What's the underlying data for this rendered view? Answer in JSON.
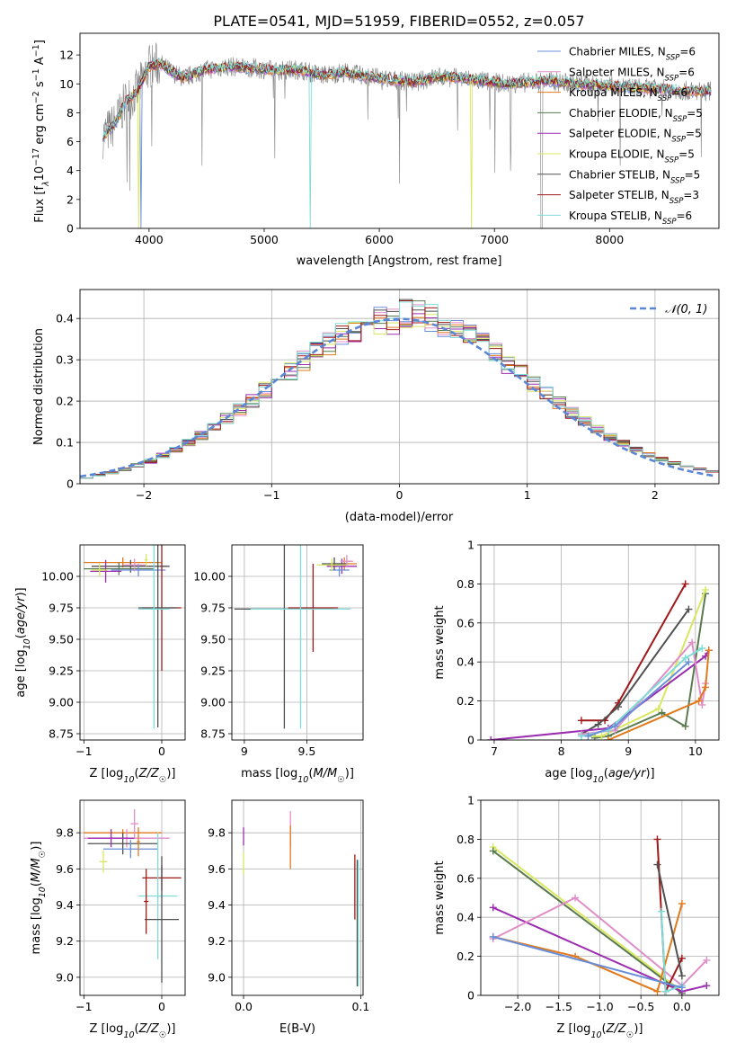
{
  "figure": {
    "title": "PLATE=0541, MJD=51959, FIBERID=0552, z=0.057"
  },
  "colors": {
    "series": [
      "#6a8ed8",
      "#e08ec8",
      "#e07a1c",
      "#5a7a50",
      "#9c2cb0",
      "#d8e860",
      "#505050",
      "#a01818",
      "#80dcd8"
    ],
    "grid": "#b0b0b0",
    "gauss": "#5b86d6"
  },
  "chart_data": [
    {
      "id": "spectrum",
      "type": "line",
      "xlabel": "wavelength [Angstrom, rest frame]",
      "ylabel": "Flux [f_λ 10^-17 erg cm^-2 s^-1 A^-1]",
      "xlim": [
        3400,
        8950
      ],
      "ylim": [
        0,
        13.5
      ],
      "xticks": [
        4000,
        5000,
        6000,
        7000,
        8000
      ],
      "yticks": [
        0,
        2,
        4,
        6,
        8,
        10,
        12
      ],
      "grid": false,
      "legend_position": "top-right",
      "legend": [
        {
          "main": "Chabrier MILES, N",
          "sub": "SSP",
          "tail": "=6"
        },
        {
          "main": "Salpeter MILES, N",
          "sub": "SSP",
          "tail": "=6"
        },
        {
          "main": "Kroupa MILES, N",
          "sub": "SSP",
          "tail": "=6"
        },
        {
          "main": "Chabrier ELODIE, N",
          "sub": "SSP",
          "tail": "=5"
        },
        {
          "main": "Salpeter ELODIE, N",
          "sub": "SSP",
          "tail": "=5"
        },
        {
          "main": "Kroupa ELODIE, N",
          "sub": "SSP",
          "tail": "=5"
        },
        {
          "main": "Chabrier STELIB, N",
          "sub": "SSP",
          "tail": "=5"
        },
        {
          "main": "Salpeter STELIB, N",
          "sub": "SSP",
          "tail": "=3"
        },
        {
          "main": "Kroupa STELIB, N",
          "sub": "SSP",
          "tail": "=6"
        }
      ],
      "data_wavelength": [
        3600,
        3700,
        3800,
        3900,
        4000,
        4100,
        4200,
        4300,
        4400,
        4500,
        4700,
        4900,
        5100,
        5300,
        5500,
        5700,
        5900,
        6100,
        6300,
        6500,
        6700,
        6900,
        7100,
        7300,
        7500,
        7700,
        7900,
        8100,
        8300,
        8500,
        8700
      ],
      "data_flux": [
        6.4,
        7.2,
        8.8,
        9.5,
        11.2,
        11.4,
        10.8,
        10.4,
        10.7,
        11.0,
        11.2,
        11.1,
        10.9,
        11.0,
        10.6,
        10.8,
        10.5,
        10.3,
        10.1,
        10.5,
        10.4,
        10.2,
        10.0,
        10.1,
        10.2,
        10.0,
        9.9,
        9.8,
        9.7,
        9.6,
        9.5
      ]
    },
    {
      "id": "residuals",
      "type": "histogram",
      "xlabel": "(data-model)/error",
      "ylabel": "Normed distribution",
      "xlim": [
        -2.5,
        2.5
      ],
      "ylim": [
        0,
        0.47
      ],
      "xticks": [
        -2,
        -1,
        0,
        1,
        2
      ],
      "yticks": [
        0.0,
        0.1,
        0.2,
        0.3,
        0.4
      ],
      "grid": true,
      "legend_position": "top-right",
      "gauss_label": "𝒩(0, 1)",
      "gauss_mean": 0,
      "gauss_sigma": 1
    },
    {
      "id": "age_vs_Z",
      "type": "errorbar",
      "xlabel": "Z [log10(Z/Z☉)]",
      "ylabel": "age  [log10(age/yr)]",
      "xlim": [
        -1.05,
        0.3
      ],
      "ylim": [
        8.7,
        10.25
      ],
      "xticks": [
        -1,
        0
      ],
      "yticks": [
        8.75,
        9.0,
        9.25,
        9.5,
        9.75,
        10.0
      ],
      "ytick_labels": [
        "8.75",
        "9.00",
        "9.25",
        "9.50",
        "9.75",
        "10.00"
      ],
      "grid": true,
      "points": [
        {
          "x": -0.5,
          "xerr": 0.5,
          "y": 10.11,
          "yerr": 0.04,
          "c": 2
        },
        {
          "x": -0.4,
          "xerr": 0.5,
          "y": 10.08,
          "yerr": 0.05,
          "c": 6
        },
        {
          "x": -0.55,
          "xerr": 0.45,
          "y": 10.06,
          "yerr": 0.05,
          "c": 3
        },
        {
          "x": -0.3,
          "xerr": 0.35,
          "y": 10.05,
          "yerr": 0.05,
          "c": 0
        },
        {
          "x": -0.72,
          "xerr": 0.2,
          "y": 10.04,
          "yerr": 0.09,
          "c": 4
        },
        {
          "x": -0.35,
          "xerr": 0.15,
          "y": 10.09,
          "yerr": 0.05,
          "c": 1
        },
        {
          "x": -0.8,
          "xerr": 0.1,
          "y": 10.05,
          "yerr": 0.05,
          "c": 5
        },
        {
          "x": -0.2,
          "xerr": 0.02,
          "y": 10.13,
          "yerr": 0.05,
          "c": 5
        },
        {
          "x": 0.0,
          "xerr": 0.25,
          "y": 9.75,
          "yerr": 0.5,
          "c": 7
        },
        {
          "x": -0.05,
          "xerr": 0.25,
          "y": 9.75,
          "yerr": 0.95,
          "c": 6
        },
        {
          "x": -0.1,
          "xerr": 0.2,
          "y": 9.74,
          "yerr": 0.95,
          "c": 8
        }
      ]
    },
    {
      "id": "age_vs_mass",
      "type": "errorbar",
      "xlabel": "mass [log10(M/M☉)]",
      "ylabel": "",
      "xlim": [
        8.9,
        9.95
      ],
      "ylim": [
        8.7,
        10.25
      ],
      "xticks": [
        9.0,
        9.5
      ],
      "yticks": [
        8.75,
        9.0,
        9.25,
        9.5,
        9.75,
        10.0
      ],
      "ytick_labels": [
        "8.75",
        "9.00",
        "9.25",
        "9.50",
        "9.75",
        "10.00"
      ],
      "grid": true,
      "points": [
        {
          "x": 9.8,
          "xerr": 0.1,
          "y": 10.1,
          "yerr": 0.05,
          "c": 2
        },
        {
          "x": 9.78,
          "xerr": 0.12,
          "y": 10.08,
          "yerr": 0.06,
          "c": 4
        },
        {
          "x": 9.76,
          "xerr": 0.08,
          "y": 10.05,
          "yerr": 0.05,
          "c": 0
        },
        {
          "x": 9.72,
          "xerr": 0.1,
          "y": 10.1,
          "yerr": 0.05,
          "c": 6
        },
        {
          "x": 9.82,
          "xerr": 0.05,
          "y": 10.12,
          "yerr": 0.05,
          "c": 1
        },
        {
          "x": 9.7,
          "xerr": 0.12,
          "y": 10.09,
          "yerr": 0.05,
          "c": 5
        },
        {
          "x": 9.55,
          "xerr": 0.2,
          "y": 9.75,
          "yerr": 0.35,
          "c": 7
        },
        {
          "x": 9.32,
          "xerr": 0.4,
          "y": 9.74,
          "yerr": 0.95,
          "c": 6
        },
        {
          "x": 9.45,
          "xerr": 0.4,
          "y": 9.74,
          "yerr": 0.95,
          "c": 8
        }
      ]
    },
    {
      "id": "weight_vs_age",
      "type": "line",
      "xlabel": "age  [log10(age/yr)]",
      "ylabel": "mass weight",
      "xlim": [
        6.8,
        10.35
      ],
      "ylim": [
        0,
        1
      ],
      "xticks": [
        7,
        8,
        9,
        10
      ],
      "yticks": [
        0.0,
        0.2,
        0.4,
        0.6,
        0.8,
        1.0
      ],
      "grid": true,
      "series": [
        {
          "c": 7,
          "x": [
            8.3,
            8.65,
            8.85,
            9.85
          ],
          "y": [
            0.1,
            0.1,
            0.19,
            0.8
          ]
        },
        {
          "c": 6,
          "x": [
            8.3,
            8.55,
            8.85,
            9.9
          ],
          "y": [
            0.03,
            0.08,
            0.17,
            0.67
          ]
        },
        {
          "c": 3,
          "x": [
            8.5,
            8.7,
            9.5,
            9.85,
            10.15
          ],
          "y": [
            0.01,
            0.02,
            0.14,
            0.07,
            0.75
          ]
        },
        {
          "c": 5,
          "x": [
            8.4,
            8.6,
            9.45,
            10.15
          ],
          "y": [
            0.02,
            0.02,
            0.16,
            0.77
          ]
        },
        {
          "c": 4,
          "x": [
            6.95,
            8.7,
            10.15,
            10.2
          ],
          "y": [
            0.0,
            0.06,
            0.43,
            0.46
          ]
        },
        {
          "c": 1,
          "x": [
            8.3,
            8.8,
            9.95,
            10.1,
            10.15
          ],
          "y": [
            0.03,
            0.05,
            0.5,
            0.18,
            0.29
          ]
        },
        {
          "c": 8,
          "x": [
            8.3,
            8.7,
            9.85,
            10.1
          ],
          "y": [
            0.02,
            0.05,
            0.42,
            0.47
          ]
        },
        {
          "c": 0,
          "x": [
            8.4,
            8.8,
            9.9
          ],
          "y": [
            0.02,
            0.07,
            0.4
          ]
        },
        {
          "c": 2,
          "x": [
            8.7,
            10.05,
            10.15,
            10.2
          ],
          "y": [
            0.0,
            0.2,
            0.27,
            0.46
          ]
        }
      ]
    },
    {
      "id": "mass_vs_Z",
      "type": "errorbar",
      "xlabel": "Z [log10(Z/Z☉)]",
      "ylabel": "mass [log10(M/M☉)]",
      "xlim": [
        -1.05,
        0.3
      ],
      "ylim": [
        8.9,
        9.98
      ],
      "xticks": [
        -1,
        0
      ],
      "yticks": [
        9.0,
        9.2,
        9.4,
        9.6,
        9.8
      ],
      "ytick_labels": [
        "9.0",
        "9.2",
        "9.4",
        "9.6",
        "9.8"
      ],
      "grid": true,
      "points": [
        {
          "x": -0.5,
          "xerr": 0.5,
          "y": 9.8,
          "yerr": 0.02,
          "c": 2
        },
        {
          "x": -0.45,
          "xerr": 0.55,
          "y": 9.77,
          "yerr": 0.05,
          "c": 1
        },
        {
          "x": -0.5,
          "xerr": 0.45,
          "y": 9.74,
          "yerr": 0.06,
          "c": 6
        },
        {
          "x": -0.65,
          "xerr": 0.3,
          "y": 9.77,
          "yerr": 0.05,
          "c": 4
        },
        {
          "x": -0.4,
          "xerr": 0.35,
          "y": 9.71,
          "yerr": 0.05,
          "c": 0
        },
        {
          "x": -0.75,
          "xerr": 0.05,
          "y": 9.64,
          "yerr": 0.06,
          "c": 5
        },
        {
          "x": -0.35,
          "xerr": 0.05,
          "y": 9.85,
          "yerr": 0.08,
          "c": 1
        },
        {
          "x": -0.3,
          "xerr": 0.02,
          "y": 9.75,
          "yerr": 0.08,
          "c": 2
        },
        {
          "x": 0.0,
          "xerr": 0.25,
          "y": 9.55,
          "yerr": 0.07,
          "c": 7
        },
        {
          "x": -0.05,
          "xerr": 0.25,
          "y": 9.45,
          "yerr": 0.35,
          "c": 8
        },
        {
          "x": 0.0,
          "xerr": 0.22,
          "y": 9.32,
          "yerr": 0.35,
          "c": 6
        },
        {
          "x": -0.2,
          "xerr": 0.03,
          "y": 9.42,
          "yerr": 0.18,
          "c": 7
        }
      ]
    },
    {
      "id": "mass_vs_EBV",
      "type": "errorbar",
      "xlabel": "E(B-V)",
      "ylabel": "",
      "xlim": [
        -0.01,
        0.102
      ],
      "ylim": [
        8.9,
        9.98
      ],
      "xticks": [
        0.0,
        0.1
      ],
      "xtick_labels": [
        "0.0",
        "0.1"
      ],
      "yticks": [
        9.0,
        9.2,
        9.4,
        9.6,
        9.8
      ],
      "ytick_labels": [
        "9.0",
        "9.2",
        "9.4",
        "9.6",
        "9.8"
      ],
      "grid": true,
      "points": [
        {
          "x": 0.0,
          "xerr": 0.0,
          "y": 9.78,
          "yerr": 0.05,
          "c": 4
        },
        {
          "x": 0.0,
          "xerr": 0.0,
          "y": 9.63,
          "yerr": 0.06,
          "c": 5
        },
        {
          "x": 0.04,
          "xerr": 0.0,
          "y": 9.82,
          "yerr": 0.1,
          "c": 1
        },
        {
          "x": 0.04,
          "xerr": 0.0,
          "y": 9.72,
          "yerr": 0.12,
          "c": 2
        },
        {
          "x": 0.095,
          "xerr": 0.0,
          "y": 9.5,
          "yerr": 0.18,
          "c": 7
        },
        {
          "x": 0.097,
          "xerr": 0.0,
          "y": 9.3,
          "yerr": 0.35,
          "c": 6
        },
        {
          "x": 0.098,
          "xerr": 0.0,
          "y": 9.3,
          "yerr": 0.35,
          "c": 8
        }
      ]
    },
    {
      "id": "weight_vs_Z",
      "type": "line",
      "xlabel": "Z [log10(Z/Z☉)]",
      "ylabel": "mass weight",
      "xlim": [
        -2.45,
        0.45
      ],
      "ylim": [
        0,
        1
      ],
      "xticks": [
        -2.0,
        -1.5,
        -1.0,
        -0.5,
        0.0
      ],
      "xtick_labels": [
        "−2.0",
        "−1.5",
        "−1.0",
        "−0.5",
        "0.0"
      ],
      "yticks": [
        0.0,
        0.2,
        0.4,
        0.6,
        0.8,
        1.0
      ],
      "grid": true,
      "series": [
        {
          "c": 5,
          "x": [
            -2.3,
            0.0
          ],
          "y": [
            0.76,
            0.02
          ]
        },
        {
          "c": 3,
          "x": [
            -2.3,
            0.0
          ],
          "y": [
            0.74,
            0.01
          ]
        },
        {
          "c": 4,
          "x": [
            -2.3,
            0.0,
            0.3
          ],
          "y": [
            0.45,
            0.02,
            0.05
          ]
        },
        {
          "c": 1,
          "x": [
            -2.3,
            -1.3,
            0.0,
            0.3
          ],
          "y": [
            0.29,
            0.5,
            0.05,
            0.18
          ]
        },
        {
          "c": 2,
          "x": [
            -2.3,
            -1.3,
            -0.3,
            0.0
          ],
          "y": [
            0.3,
            0.2,
            0.02,
            0.47
          ]
        },
        {
          "c": 7,
          "x": [
            -0.3,
            -0.2,
            0.0
          ],
          "y": [
            0.8,
            0.02,
            0.19
          ]
        },
        {
          "c": 6,
          "x": [
            -0.3,
            0.0
          ],
          "y": [
            0.67,
            0.1
          ]
        },
        {
          "c": 8,
          "x": [
            -0.25,
            -0.2,
            0.0
          ],
          "y": [
            0.43,
            0.02,
            0.05
          ]
        },
        {
          "c": 0,
          "x": [
            -2.3,
            0.0
          ],
          "y": [
            0.3,
            0.04
          ]
        }
      ]
    }
  ]
}
